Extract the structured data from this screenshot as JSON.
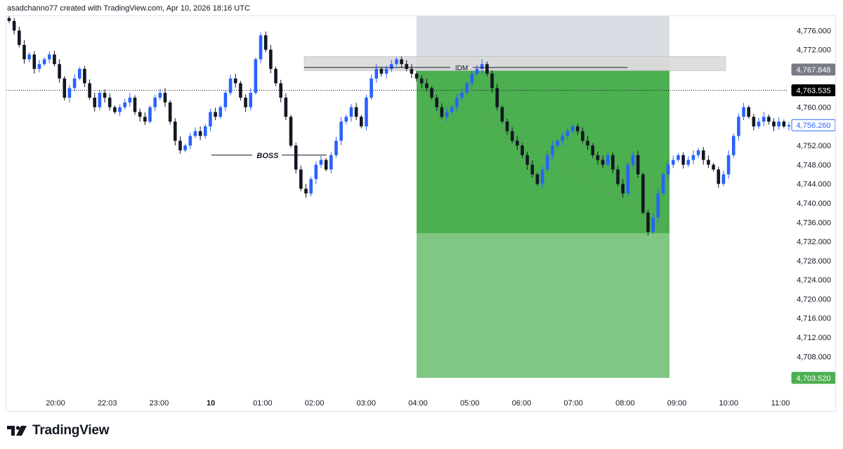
{
  "header": {
    "attribution": "asadchanno77 created with TradingView.com, Apr 10, 2026 18:16 UTC"
  },
  "brand": {
    "name": "TradingView",
    "icon": "tradingview-logo-icon"
  },
  "colors": {
    "up_candle": "#2962ff",
    "down_candle": "#131722",
    "profit_zone": "#4caf50",
    "target_zone": "#81c784",
    "stop_zone": "#d1d4dc",
    "idm_zone": "#d9d9d9",
    "current_price_label": "#000000",
    "last_price_label": "#2962ff",
    "target_label": "#4caf50",
    "entry_label": "#787b86"
  },
  "chart_data": {
    "type": "candlestick",
    "x_ticks": [
      "20:00",
      "22:03",
      "23:00",
      "10",
      "01:00",
      "02:00",
      "03:00",
      "04:00",
      "05:00",
      "06:00",
      "07:00",
      "08:00",
      "09:00",
      "10:00",
      "11:00"
    ],
    "y_ticks": [
      "4,776.000",
      "4,772.000",
      "4,760.000",
      "4,752.000",
      "4,748.000",
      "4,744.000",
      "4,740.000",
      "4,736.000",
      "4,732.000",
      "4,728.000",
      "4,724.000",
      "4,720.000",
      "4,716.000",
      "4,712.000",
      "4,708.000"
    ],
    "ylim": [
      4701,
      4779
    ],
    "price_labels": {
      "entry": "4,767.848",
      "current": "4,763.535",
      "last": "4,756.260",
      "target": "4,703.520"
    },
    "annotations": [
      {
        "label": "BOSS",
        "price": 4750.0
      },
      {
        "label": "IDM",
        "price": 4768.3
      }
    ],
    "position": {
      "side": "short",
      "entry": 4767.848,
      "stop": 4780,
      "target": 4703.52,
      "reached": 4733.7
    },
    "idm_zone": {
      "low": 4767.6,
      "high": 4770.6
    },
    "close_path": [
      4778,
      4776,
      4773,
      4770,
      4771,
      4768,
      4769,
      4770,
      4771,
      4769,
      4766,
      4762,
      4764,
      4766,
      4768,
      4765,
      4762,
      4760,
      4763,
      4762,
      4760,
      4759,
      4760,
      4761,
      4762,
      4759,
      4758,
      4757,
      4760,
      4762,
      4763,
      4761,
      4757,
      4753,
      4751,
      4752,
      4754,
      4755,
      4754,
      4756,
      4759,
      4758,
      4760,
      4763,
      4766,
      4765,
      4762,
      4760,
      4763,
      4770,
      4775,
      4772,
      4768,
      4765,
      4762,
      4758,
      4752,
      4747,
      4743,
      4742,
      4745,
      4748,
      4749,
      4747,
      4750,
      4753,
      4757,
      4758,
      4760,
      4758,
      4756,
      4762,
      4766,
      4768,
      4767,
      4768,
      4769,
      4770,
      4769,
      4768,
      4767,
      4766,
      4765,
      4764,
      4762,
      4760,
      4758,
      4759,
      4760,
      4762,
      4763,
      4765,
      4767,
      4768,
      4769,
      4767,
      4764,
      4760,
      4757,
      4755,
      4753,
      4752,
      4750,
      4748,
      4746,
      4744,
      4747,
      4750,
      4752,
      4753,
      4754,
      4755,
      4756,
      4755,
      4753,
      4752,
      4750,
      4749,
      4748,
      4750,
      4747,
      4744,
      4742,
      4748,
      4750,
      4746,
      4738,
      4734,
      4737,
      4742,
      4746,
      4748,
      4749,
      4750,
      4748,
      4749,
      4750,
      4751,
      4749,
      4748,
      4747,
      4744,
      4746,
      4750,
      4754,
      4758,
      4760,
      4758,
      4756,
      4757,
      4758,
      4757,
      4756,
      4757,
      4756,
      4756.26
    ]
  }
}
